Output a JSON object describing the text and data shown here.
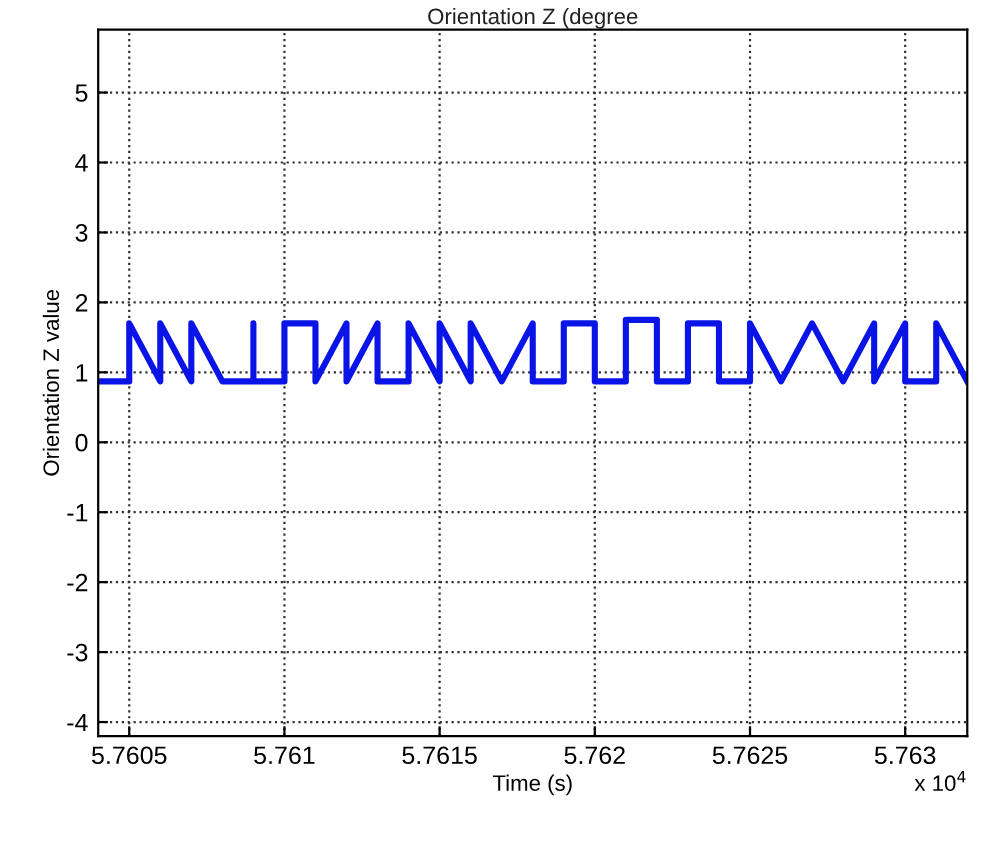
{
  "chart_data": {
    "type": "line",
    "title": "Orientation Z (degree",
    "xlabel": "Time (s)",
    "ylabel": "Orientation Z value",
    "annotations": [
      "x 10$^{4}$"
    ],
    "x": [
      5.76041,
      5.7605,
      5.7605,
      5.7606,
      5.7606,
      5.7607,
      5.7607,
      5.7608,
      5.7609,
      5.7609,
      5.7609,
      5.761,
      5.761,
      5.7611,
      5.7611,
      5.7612,
      5.7612,
      5.7613,
      5.7613,
      5.7614,
      5.7614,
      5.7615,
      5.7615,
      5.7616,
      5.7616,
      5.7617,
      5.7617,
      5.7618,
      5.7618,
      5.7619,
      5.7619,
      5.762,
      5.762,
      5.7621,
      5.7621,
      5.7622,
      5.7622,
      5.7623,
      5.7623,
      5.7624,
      5.7624,
      5.7625,
      5.7625,
      5.7626,
      5.7626,
      5.7627,
      5.7627,
      5.7628,
      5.7628,
      5.7629,
      5.7629,
      5.763,
      5.763,
      5.7631,
      5.7631,
      5.7632
    ],
    "series": [
      {
        "color": "#0a14e6",
        "values": [
          0.87,
          0.87,
          1.7,
          0.87,
          1.7,
          0.87,
          1.7,
          0.87,
          0.87,
          1.7,
          0.87,
          0.87,
          1.7,
          1.7,
          0.87,
          1.7,
          0.87,
          1.7,
          0.87,
          0.87,
          1.7,
          0.87,
          1.7,
          0.87,
          1.7,
          0.87,
          0.87,
          1.7,
          0.87,
          0.87,
          1.7,
          1.7,
          0.87,
          0.87,
          1.75,
          1.75,
          0.87,
          0.87,
          1.7,
          1.7,
          0.87,
          0.87,
          1.7,
          0.87,
          0.87,
          1.7,
          1.7,
          0.87,
          0.87,
          1.7,
          0.87,
          1.7,
          0.87,
          0.87,
          1.7,
          0.87
        ]
      }
    ],
    "xlim": [
      5.7604,
      5.7632
    ],
    "ylim": [
      -4.2,
      5.9
    ],
    "xticks": [
      5.7605,
      5.761,
      5.7615,
      5.762,
      5.7625,
      5.763
    ],
    "yticks": [
      -4,
      -3,
      -2,
      -1,
      0,
      1,
      2,
      3,
      4,
      5
    ],
    "grid": true,
    "line_style": "solid",
    "marker": "none"
  }
}
